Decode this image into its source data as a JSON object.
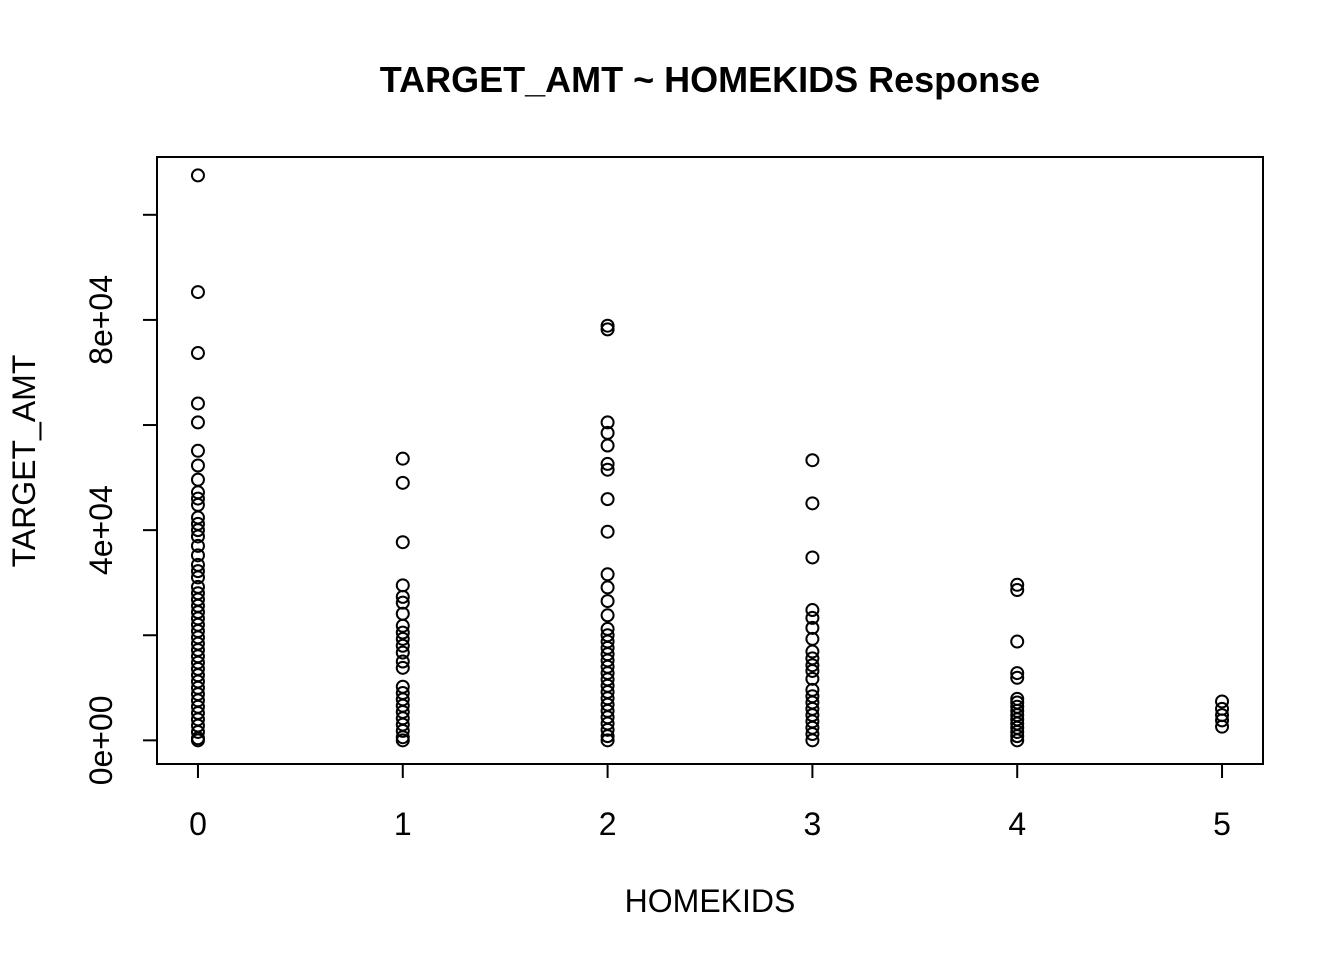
{
  "chart_data": {
    "type": "scatter",
    "title": "TARGET_AMT ~ HOMEKIDS Response",
    "xlabel": "HOMEKIDS",
    "ylabel": "TARGET_AMT",
    "xlim": [
      -0.2,
      5.2
    ],
    "ylim": [
      -4500,
      111000
    ],
    "x_ticks": [
      0,
      1,
      2,
      3,
      4,
      5
    ],
    "x_tick_labels": [
      "0",
      "1",
      "2",
      "3",
      "4",
      "5"
    ],
    "y_ticks": [
      0,
      20000,
      40000,
      60000,
      80000,
      100000
    ],
    "y_tick_labels": [
      "0e+00",
      "",
      "4e+04",
      "",
      "8e+04",
      ""
    ],
    "grid": false,
    "series": [
      {
        "points": [
          [
            0,
            107500
          ],
          [
            0,
            85300
          ],
          [
            0,
            73700
          ],
          [
            0,
            64100
          ],
          [
            0,
            60500
          ],
          [
            0,
            55100
          ],
          [
            0,
            52300
          ],
          [
            0,
            49600
          ],
          [
            0,
            47200
          ],
          [
            0,
            46000
          ],
          [
            0,
            44800
          ],
          [
            0,
            42400
          ],
          [
            0,
            41200
          ],
          [
            0,
            40000
          ],
          [
            0,
            38800
          ],
          [
            0,
            37000
          ],
          [
            0,
            35200
          ],
          [
            0,
            33400
          ],
          [
            0,
            32200
          ],
          [
            0,
            31000
          ],
          [
            0,
            29200
          ],
          [
            0,
            28000
          ],
          [
            0,
            26800
          ],
          [
            0,
            25600
          ],
          [
            0,
            24400
          ],
          [
            0,
            23200
          ],
          [
            0,
            22000
          ],
          [
            0,
            20800
          ],
          [
            0,
            19600
          ],
          [
            0,
            18400
          ],
          [
            0,
            17200
          ],
          [
            0,
            16000
          ],
          [
            0,
            14800
          ],
          [
            0,
            13600
          ],
          [
            0,
            12400
          ],
          [
            0,
            11200
          ],
          [
            0,
            10000
          ],
          [
            0,
            8800
          ],
          [
            0,
            7600
          ],
          [
            0,
            6400
          ],
          [
            0,
            5200
          ],
          [
            0,
            4000
          ],
          [
            0,
            2800
          ],
          [
            0,
            1600
          ],
          [
            0,
            400
          ],
          [
            0,
            0
          ],
          [
            1,
            53600
          ],
          [
            1,
            49000
          ],
          [
            1,
            37700
          ],
          [
            1,
            29500
          ],
          [
            1,
            27300
          ],
          [
            1,
            26200
          ],
          [
            1,
            24100
          ],
          [
            1,
            21800
          ],
          [
            1,
            20500
          ],
          [
            1,
            19300
          ],
          [
            1,
            18000
          ],
          [
            1,
            16700
          ],
          [
            1,
            15000
          ],
          [
            1,
            13800
          ],
          [
            1,
            10200
          ],
          [
            1,
            9000
          ],
          [
            1,
            7800
          ],
          [
            1,
            6600
          ],
          [
            1,
            5400
          ],
          [
            1,
            4200
          ],
          [
            1,
            3000
          ],
          [
            1,
            1800
          ],
          [
            1,
            600
          ],
          [
            1,
            0
          ],
          [
            2,
            78900
          ],
          [
            2,
            78200
          ],
          [
            2,
            60500
          ],
          [
            2,
            58500
          ],
          [
            2,
            56100
          ],
          [
            2,
            52600
          ],
          [
            2,
            51500
          ],
          [
            2,
            45900
          ],
          [
            2,
            39700
          ],
          [
            2,
            31600
          ],
          [
            2,
            29100
          ],
          [
            2,
            26500
          ],
          [
            2,
            23800
          ],
          [
            2,
            21200
          ],
          [
            2,
            20000
          ],
          [
            2,
            18800
          ],
          [
            2,
            17600
          ],
          [
            2,
            16400
          ],
          [
            2,
            15200
          ],
          [
            2,
            14000
          ],
          [
            2,
            12800
          ],
          [
            2,
            11600
          ],
          [
            2,
            10400
          ],
          [
            2,
            9200
          ],
          [
            2,
            8000
          ],
          [
            2,
            6800
          ],
          [
            2,
            5600
          ],
          [
            2,
            4400
          ],
          [
            2,
            3200
          ],
          [
            2,
            2000
          ],
          [
            2,
            800
          ],
          [
            2,
            0
          ],
          [
            3,
            53300
          ],
          [
            3,
            45100
          ],
          [
            3,
            34800
          ],
          [
            3,
            24800
          ],
          [
            3,
            23300
          ],
          [
            3,
            21400
          ],
          [
            3,
            19300
          ],
          [
            3,
            16900
          ],
          [
            3,
            15600
          ],
          [
            3,
            14300
          ],
          [
            3,
            13200
          ],
          [
            3,
            11700
          ],
          [
            3,
            9600
          ],
          [
            3,
            8400
          ],
          [
            3,
            7200
          ],
          [
            3,
            6000
          ],
          [
            3,
            4800
          ],
          [
            3,
            3600
          ],
          [
            3,
            2400
          ],
          [
            3,
            1200
          ],
          [
            3,
            0
          ],
          [
            4,
            29600
          ],
          [
            4,
            28600
          ],
          [
            4,
            18800
          ],
          [
            4,
            12800
          ],
          [
            4,
            11900
          ],
          [
            4,
            7900
          ],
          [
            4,
            7200
          ],
          [
            4,
            6400
          ],
          [
            4,
            5600
          ],
          [
            4,
            4800
          ],
          [
            4,
            4000
          ],
          [
            4,
            3200
          ],
          [
            4,
            2400
          ],
          [
            4,
            1600
          ],
          [
            4,
            800
          ],
          [
            4,
            0
          ],
          [
            5,
            7400
          ],
          [
            5,
            6000
          ],
          [
            5,
            4800
          ],
          [
            5,
            3800
          ],
          [
            5,
            2600
          ]
        ]
      }
    ]
  }
}
